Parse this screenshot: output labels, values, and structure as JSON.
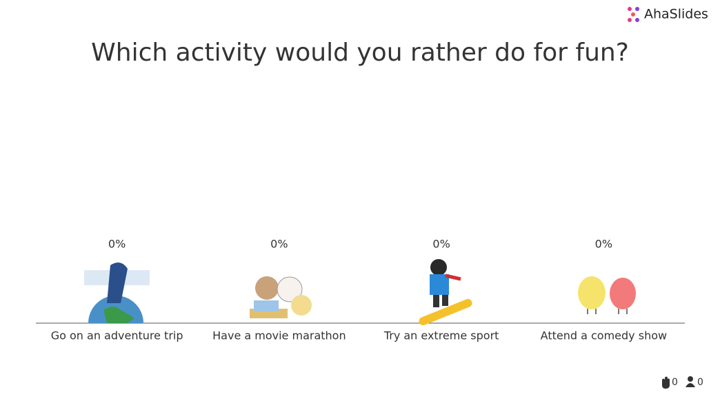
{
  "brand": "AhaSlides",
  "chart_data": {
    "type": "bar",
    "title": "Which activity would you rather do for fun?",
    "categories": [
      "Go on an adventure trip",
      "Have a movie marathon",
      "Try an extreme sport",
      "Attend a comedy show"
    ],
    "values": [
      0,
      0,
      0,
      0
    ],
    "value_labels": [
      "0%",
      "0%",
      "0%",
      "0%"
    ],
    "color": "#4a4a9c"
  },
  "footer": {
    "reactions": "0",
    "participants": "0"
  }
}
